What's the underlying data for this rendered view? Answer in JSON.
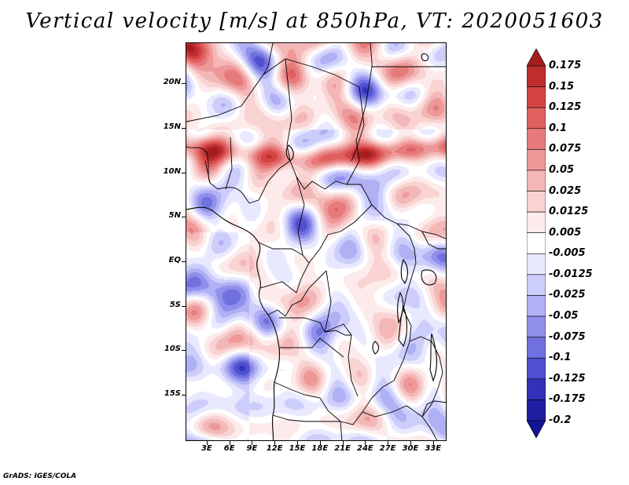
{
  "title": "Vertical velocity [m/s] at 850hPa, VT: 2020051603",
  "footer": "GrADS: IGES/COLA",
  "colors": {
    "positive_max": "#a51e1e",
    "negative_max": "#1a1499",
    "neutral": "#ffffff",
    "boundaries": "#000000"
  },
  "map": {
    "variable": "Vertical velocity",
    "units": "m/s",
    "level": "850hPa",
    "valid_time": "2020051603",
    "lat_range": [
      -20,
      25
    ],
    "lon_range": [
      0,
      35
    ],
    "lat_ticks": [
      {
        "value": 20,
        "label": "20N"
      },
      {
        "value": 15,
        "label": "15N"
      },
      {
        "value": 10,
        "label": "10N"
      },
      {
        "value": 5,
        "label": "5N"
      },
      {
        "value": 0,
        "label": "EQ"
      },
      {
        "value": -5,
        "label": "5S"
      },
      {
        "value": -10,
        "label": "10S"
      },
      {
        "value": -15,
        "label": "15S"
      }
    ],
    "lon_ticks": [
      {
        "value": 3,
        "label": "3E"
      },
      {
        "value": 6,
        "label": "6E"
      },
      {
        "value": 9,
        "label": "9E"
      },
      {
        "value": 12,
        "label": "12E"
      },
      {
        "value": 15,
        "label": "15E"
      },
      {
        "value": 18,
        "label": "18E"
      },
      {
        "value": 21,
        "label": "21E"
      },
      {
        "value": 24,
        "label": "24E"
      },
      {
        "value": 27,
        "label": "27E"
      },
      {
        "value": 30,
        "label": "30E"
      },
      {
        "value": 33,
        "label": "33E"
      }
    ]
  },
  "colorbar": {
    "levels": [
      "0.175",
      "0.15",
      "0.125",
      "0.1",
      "0.075",
      "0.05",
      "0.025",
      "0.0125",
      "0.005",
      "-0.005",
      "-0.0125",
      "-0.025",
      "-0.05",
      "-0.075",
      "-0.1",
      "-0.125",
      "-0.175",
      "-0.2"
    ],
    "segment_colors": [
      "#a51e1e",
      "#bf2e2e",
      "#d44545",
      "#e06060",
      "#e77a7a",
      "#ee9898",
      "#f4b7b7",
      "#f9d2d2",
      "#fdeaea",
      "#ffffff",
      "#e8e8ff",
      "#cdcdfb",
      "#b0b0f5",
      "#9090ec",
      "#7070e0",
      "#5050d0",
      "#3232b8",
      "#1e1ea0",
      "#141496"
    ]
  }
}
